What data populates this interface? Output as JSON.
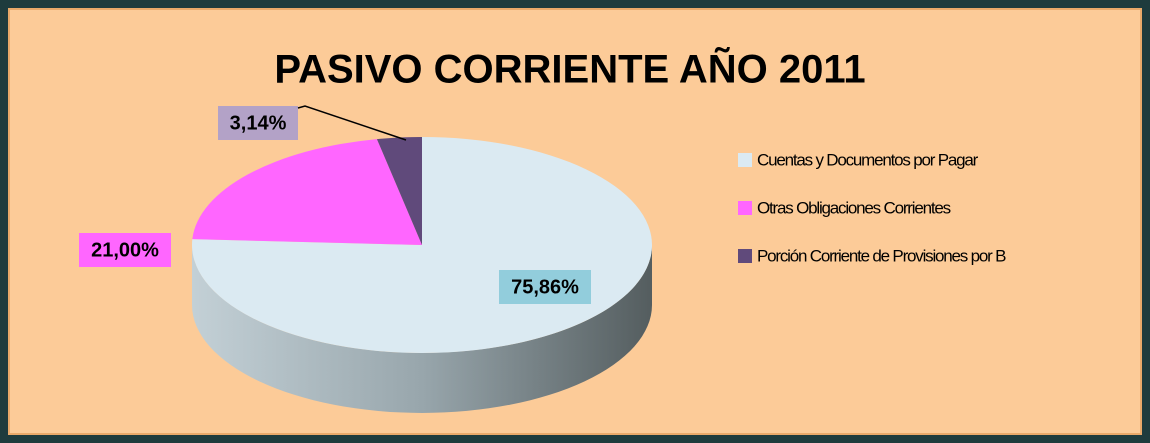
{
  "chart_data": {
    "type": "pie",
    "title": "PASIVO CORRIENTE AÑO 2011",
    "categories": [
      "Cuentas y Documentos por Pagar",
      "Otras Obligaciones Corrientes",
      "Porción Corriente de Provisiones por B"
    ],
    "values": [
      75.86,
      21.0,
      3.14
    ],
    "value_labels": [
      "75,86%",
      "21,00%",
      "3,14%"
    ],
    "colors": [
      "#dbeaf2",
      "#ff66ff",
      "#604a7b"
    ],
    "legend": "right"
  }
}
